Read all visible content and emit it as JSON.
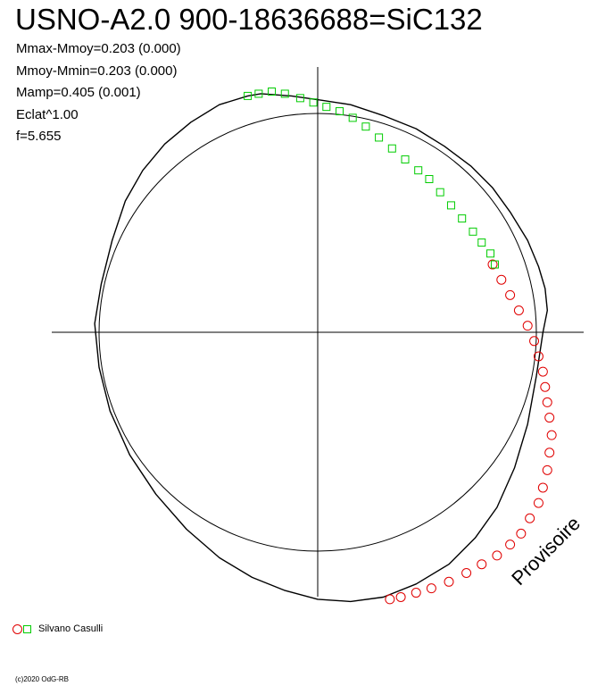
{
  "title": "USNO-A2.0 900-18636688=SiC132",
  "stats": [
    "Mmax-Mmoy=0.203 (0.000)",
    "Mmoy-Mmin=0.203 (0.000)",
    "Mamp=0.405 (0.001)",
    "Eclat^1.00",
    "f=5.655"
  ],
  "legend": {
    "observer": "Silvano Casulli"
  },
  "copyright": "(c)2020 OdG-RB",
  "watermark": "Provisoire",
  "colors": {
    "red": "#e00000",
    "green": "#00cc00",
    "curve": "#000000"
  },
  "chart_data": {
    "type": "scatter",
    "title": "USNO-A2.0 900-18636688=SiC132",
    "xlabel": "",
    "ylabel": "",
    "xlim": [
      -1.22,
      1.22
    ],
    "ylim": [
      -1.22,
      1.22
    ],
    "grid": false,
    "reference_circle": {
      "radius": 1.0
    },
    "series": [
      {
        "marker": "circle",
        "color": "#e00000",
        "x": [
          0.8,
          0.84,
          0.88,
          0.92,
          0.96,
          0.99,
          1.01,
          1.03,
          1.04,
          1.05,
          1.06,
          1.07,
          1.06,
          1.05,
          1.03,
          1.01,
          0.97,
          0.93,
          0.88,
          0.82,
          0.75,
          0.68,
          0.6,
          0.52,
          0.45,
          0.38,
          0.33
        ],
        "y": [
          0.31,
          0.24,
          0.17,
          0.1,
          0.03,
          -0.04,
          -0.11,
          -0.18,
          -0.25,
          -0.32,
          -0.39,
          -0.47,
          -0.55,
          -0.63,
          -0.71,
          -0.78,
          -0.85,
          -0.92,
          -0.97,
          -1.02,
          -1.06,
          -1.1,
          -1.14,
          -1.17,
          -1.19,
          -1.21,
          -1.22
        ]
      },
      {
        "marker": "square",
        "color": "#00cc00",
        "x": [
          -0.32,
          -0.27,
          -0.21,
          -0.15,
          -0.08,
          -0.02,
          0.04,
          0.1,
          0.16,
          0.22,
          0.28,
          0.34,
          0.4,
          0.46,
          0.51,
          0.56,
          0.61,
          0.66,
          0.71,
          0.75,
          0.79,
          0.81
        ],
        "y": [
          1.08,
          1.09,
          1.1,
          1.09,
          1.07,
          1.05,
          1.03,
          1.01,
          0.98,
          0.94,
          0.89,
          0.84,
          0.79,
          0.74,
          0.7,
          0.64,
          0.58,
          0.52,
          0.46,
          0.41,
          0.36,
          0.31
        ]
      }
    ],
    "model_curve": {
      "x": [
        -0.32,
        -0.45,
        -0.58,
        -0.7,
        -0.8,
        -0.88,
        -0.94,
        -0.99,
        -1.02,
        -1.0,
        -0.95,
        -0.86,
        -0.74,
        -0.6,
        -0.45,
        -0.3,
        -0.15,
        0.0,
        0.15,
        0.3,
        0.45,
        0.6,
        0.72,
        0.82,
        0.9,
        0.96,
        1.0,
        1.03,
        1.05,
        1.04,
        1.01,
        0.96,
        0.88,
        0.8,
        0.7,
        0.58,
        0.45,
        0.3,
        0.15,
        0.02,
        -0.12,
        -0.26,
        -0.32
      ],
      "y": [
        1.08,
        1.04,
        0.96,
        0.86,
        0.74,
        0.6,
        0.42,
        0.22,
        0.04,
        -0.16,
        -0.36,
        -0.56,
        -0.74,
        -0.9,
        -1.03,
        -1.12,
        -1.18,
        -1.22,
        -1.23,
        -1.21,
        -1.15,
        -1.06,
        -0.94,
        -0.8,
        -0.62,
        -0.42,
        -0.2,
        0.0,
        0.1,
        0.2,
        0.3,
        0.42,
        0.55,
        0.66,
        0.76,
        0.85,
        0.93,
        0.99,
        1.04,
        1.06,
        1.08,
        1.09,
        1.08
      ]
    }
  }
}
